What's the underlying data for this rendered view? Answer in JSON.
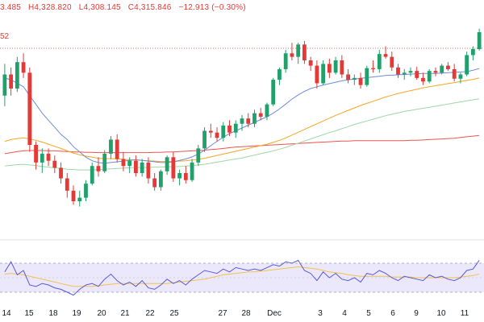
{
  "header": {
    "ohlc": {
      "open": "3.485",
      "high_label": "H4,328.820",
      "low_label": "L4,308.145",
      "close_label": "C4,315.846",
      "change": "−12.913 (−0.30%)"
    },
    "price_tag": "52"
  },
  "colors": {
    "up": "#22a06b",
    "down": "#e53935",
    "ema_fast": "#6f8bd8",
    "ema_mid": "#f5a623",
    "ema_slow": "#9ed7a5",
    "ema_long": "#ef5350",
    "rsi": "#5b59d6",
    "rsi_ma": "#f2c14e",
    "rsi_band": "#ebe8fb"
  },
  "chart_data": {
    "type": "candlestick",
    "x_ticks": [
      "14",
      "15",
      "18",
      "19",
      "20",
      "21",
      "22",
      "25",
      "27",
      "28",
      "Dec",
      "3",
      "4",
      "5",
      "6",
      "9",
      "10",
      "11"
    ],
    "candles": [
      [
        4150,
        4240,
        4120,
        4210
      ],
      [
        4210,
        4230,
        4150,
        4170
      ],
      [
        4170,
        4260,
        4160,
        4245
      ],
      [
        4245,
        4270,
        4200,
        4215
      ],
      [
        4215,
        4230,
        3990,
        4010
      ],
      [
        4010,
        4020,
        3940,
        3960
      ],
      [
        3960,
        4000,
        3930,
        3985
      ],
      [
        3985,
        4000,
        3950,
        3965
      ],
      [
        3965,
        3980,
        3930,
        3945
      ],
      [
        3945,
        3960,
        3900,
        3915
      ],
      [
        3915,
        3930,
        3860,
        3880
      ],
      [
        3880,
        3895,
        3840,
        3850
      ],
      [
        3850,
        3880,
        3835,
        3860
      ],
      [
        3860,
        3910,
        3850,
        3900
      ],
      [
        3900,
        3960,
        3895,
        3950
      ],
      [
        3950,
        3975,
        3920,
        3935
      ],
      [
        3935,
        3995,
        3930,
        3985
      ],
      [
        3985,
        4035,
        3970,
        4025
      ],
      [
        4025,
        4040,
        3960,
        3970
      ],
      [
        3970,
        3990,
        3935,
        3950
      ],
      [
        3950,
        3975,
        3930,
        3965
      ],
      [
        3965,
        3980,
        3920,
        3930
      ],
      [
        3930,
        3970,
        3920,
        3960
      ],
      [
        3960,
        3975,
        3900,
        3915
      ],
      [
        3915,
        3930,
        3880,
        3890
      ],
      [
        3890,
        3940,
        3880,
        3935
      ],
      [
        3935,
        3980,
        3925,
        3975
      ],
      [
        3975,
        3990,
        3905,
        3915
      ],
      [
        3915,
        3940,
        3895,
        3930
      ],
      [
        3930,
        3950,
        3900,
        3910
      ],
      [
        3910,
        3970,
        3905,
        3960
      ],
      [
        3960,
        4010,
        3950,
        4000
      ],
      [
        4000,
        4060,
        3990,
        4050
      ],
      [
        4050,
        4070,
        4030,
        4045
      ],
      [
        4045,
        4060,
        4020,
        4030
      ],
      [
        4030,
        4075,
        4020,
        4065
      ],
      [
        4065,
        4080,
        4035,
        4045
      ],
      [
        4045,
        4080,
        4030,
        4070
      ],
      [
        4070,
        4095,
        4050,
        4085
      ],
      [
        4085,
        4100,
        4060,
        4070
      ],
      [
        4070,
        4110,
        4060,
        4100
      ],
      [
        4100,
        4115,
        4080,
        4090
      ],
      [
        4090,
        4130,
        4080,
        4125
      ],
      [
        4125,
        4200,
        4120,
        4195
      ],
      [
        4195,
        4230,
        4180,
        4225
      ],
      [
        4225,
        4280,
        4215,
        4270
      ],
      [
        4270,
        4300,
        4250,
        4260
      ],
      [
        4260,
        4300,
        4240,
        4295
      ],
      [
        4295,
        4305,
        4240,
        4250
      ],
      [
        4250,
        4260,
        4220,
        4235
      ],
      [
        4235,
        4250,
        4170,
        4185
      ],
      [
        4185,
        4250,
        4180,
        4240
      ],
      [
        4240,
        4255,
        4200,
        4215
      ],
      [
        4215,
        4260,
        4210,
        4250
      ],
      [
        4250,
        4265,
        4200,
        4210
      ],
      [
        4210,
        4225,
        4185,
        4195
      ],
      [
        4195,
        4210,
        4180,
        4200
      ],
      [
        4200,
        4215,
        4170,
        4180
      ],
      [
        4180,
        4235,
        4175,
        4228
      ],
      [
        4228,
        4250,
        4215,
        4225
      ],
      [
        4225,
        4280,
        4215,
        4268
      ],
      [
        4268,
        4290,
        4255,
        4260
      ],
      [
        4260,
        4275,
        4220,
        4230
      ],
      [
        4230,
        4240,
        4200,
        4210
      ],
      [
        4210,
        4225,
        4195,
        4215
      ],
      [
        4215,
        4230,
        4205,
        4220
      ],
      [
        4220,
        4232,
        4195,
        4200
      ],
      [
        4200,
        4215,
        4180,
        4190
      ],
      [
        4190,
        4225,
        4185,
        4220
      ],
      [
        4220,
        4230,
        4205,
        4215
      ],
      [
        4215,
        4240,
        4210,
        4235
      ],
      [
        4235,
        4245,
        4220,
        4225
      ],
      [
        4225,
        4240,
        4190,
        4198
      ],
      [
        4198,
        4215,
        4185,
        4210
      ],
      [
        4210,
        4275,
        4205,
        4265
      ],
      [
        4265,
        4290,
        4250,
        4282
      ],
      [
        4282,
        4340,
        4278,
        4330
      ]
    ],
    "price_range": [
      3850,
      4330
    ],
    "ema_fast": [
      4200,
      4195,
      4185,
      4175,
      4150,
      4125,
      4100,
      4080,
      4060,
      4040,
      4025,
      4005,
      3990,
      3975,
      3965,
      3960,
      3958,
      3960,
      3962,
      3964,
      3966,
      3968,
      3966,
      3964,
      3962,
      3960,
      3960,
      3962,
      3966,
      3970,
      3976,
      3984,
      3995,
      4008,
      4020,
      4032,
      4042,
      4050,
      4058,
      4066,
      4074,
      4082,
      4090,
      4100,
      4112,
      4126,
      4140,
      4152,
      4162,
      4170,
      4175,
      4180,
      4184,
      4188,
      4192,
      4195,
      4197,
      4199,
      4201,
      4203,
      4205,
      4207,
      4208,
      4209,
      4210,
      4211,
      4212,
      4213,
      4213,
      4213,
      4214,
      4215,
      4216,
      4217,
      4218,
      4222,
      4227
    ],
    "ema_mid": [
      4020,
      4025,
      4028,
      4030,
      4027,
      4023,
      4018,
      4012,
      4006,
      4000,
      3993,
      3987,
      3982,
      3978,
      3975,
      3972,
      3971,
      3971,
      3970,
      3969,
      3968,
      3967,
      3966,
      3965,
      3964,
      3963,
      3963,
      3963,
      3964,
      3965,
      3967,
      3969,
      3972,
      3976,
      3980,
      3984,
      3988,
      3992,
      3996,
      4000,
      4004,
      4008,
      4012,
      4017,
      4023,
      4030,
      4038,
      4046,
      4054,
      4062,
      4070,
      4078,
      4086,
      4094,
      4101,
      4108,
      4115,
      4122,
      4128,
      4134,
      4140,
      4146,
      4151,
      4156,
      4160,
      4164,
      4168,
      4172,
      4175,
      4178,
      4181,
      4184,
      4187,
      4190,
      4193,
      4196,
      4200
    ],
    "ema_slow": [
      3950,
      3952,
      3954,
      3955,
      3953,
      3951,
      3949,
      3947,
      3945,
      3943,
      3941,
      3940,
      3939,
      3939,
      3939,
      3940,
      3941,
      3942,
      3943,
      3944,
      3945,
      3946,
      3946,
      3946,
      3947,
      3947,
      3948,
      3948,
      3949,
      3950,
      3951,
      3953,
      3955,
      3958,
      3961,
      3964,
      3967,
      3970,
      3973,
      3977,
      3981,
      3985,
      3989,
      3993,
      3998,
      4003,
      4009,
      4015,
      4021,
      4027,
      4033,
      4039,
      4045,
      4050,
      4056,
      4062,
      4068,
      4073,
      4078,
      4083,
      4088,
      4093,
      4097,
      4101,
      4105,
      4108,
      4111,
      4114,
      4117,
      4120,
      4123,
      4126,
      4129,
      4132,
      4135,
      4138,
      4141
    ],
    "ema_long": [
      3985,
      3988,
      3991,
      3993,
      3994,
      3994,
      3994,
      3993,
      3993,
      3992,
      3991,
      3990,
      3990,
      3989,
      3989,
      3988,
      3988,
      3988,
      3988,
      3988,
      3988,
      3988,
      3988,
      3988,
      3989,
      3989,
      3990,
      3990,
      3991,
      3992,
      3993,
      3994,
      3995,
      3997,
      3998,
      4000,
      4002,
      4004,
      4005,
      4006,
      4007,
      4008,
      4009,
      4010,
      4011,
      4012,
      4013,
      4014,
      4015,
      4016,
      4017,
      4018,
      4019,
      4020,
      4021,
      4021,
      4022,
      4022,
      4022,
      4022,
      4022,
      4022,
      4022,
      4022,
      4022,
      4023,
      4023,
      4024,
      4025,
      4026,
      4027,
      4028,
      4029,
      4031,
      4033,
      4035,
      4037
    ],
    "rsi": [
      58,
      72,
      54,
      60,
      40,
      38,
      42,
      40,
      36,
      34,
      30,
      26,
      34,
      40,
      42,
      38,
      48,
      55,
      46,
      40,
      44,
      38,
      46,
      36,
      34,
      40,
      48,
      42,
      46,
      40,
      48,
      54,
      60,
      58,
      56,
      62,
      58,
      64,
      62,
      60,
      62,
      60,
      64,
      68,
      66,
      72,
      70,
      74,
      60,
      56,
      46,
      58,
      50,
      56,
      48,
      46,
      50,
      44,
      56,
      54,
      60,
      56,
      50,
      46,
      52,
      50,
      48,
      46,
      54,
      50,
      52,
      48,
      46,
      50,
      60,
      62,
      74
    ],
    "rsi_ma": [
      55,
      56,
      55,
      54,
      52,
      50,
      48,
      46,
      44,
      42,
      40,
      38,
      38,
      38,
      38,
      39,
      40,
      41,
      42,
      42,
      42,
      42,
      42,
      42,
      42,
      42,
      42,
      43,
      44,
      45,
      46,
      47,
      48,
      50,
      52,
      54,
      55,
      56,
      57,
      58,
      58,
      59,
      60,
      61,
      62,
      63,
      64,
      65,
      64,
      63,
      62,
      60,
      58,
      57,
      56,
      54,
      53,
      52,
      52,
      52,
      52,
      52,
      51,
      51,
      51,
      51,
      50,
      50,
      50,
      50,
      50,
      50,
      50,
      51,
      52,
      53,
      55
    ],
    "rsi_range": [
      20,
      80
    ],
    "rsi_bands": [
      30,
      70
    ]
  }
}
